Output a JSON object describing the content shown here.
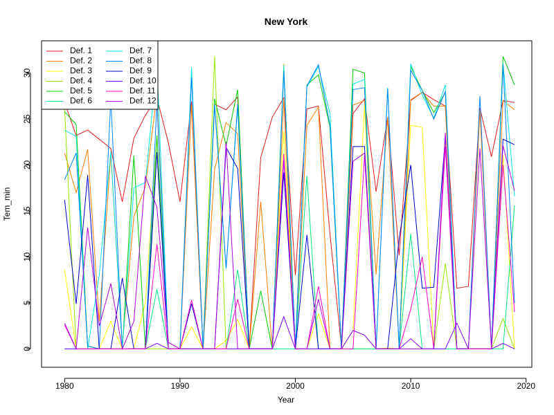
{
  "chart_data": {
    "type": "line",
    "title": "New York",
    "xlabel": "Year",
    "ylabel": "Tem_min",
    "xlim": [
      1978,
      2020.5
    ],
    "ylim": [
      -2,
      33.5
    ],
    "x_ticks": [
      1980,
      1990,
      2000,
      2010,
      2020
    ],
    "y_ticks": [
      0,
      5,
      10,
      15,
      20,
      25,
      30
    ],
    "legend_position": "top-left",
    "legend_columns": 2,
    "grid": false,
    "x": [
      1980,
      1981,
      1982,
      1983,
      1984,
      1985,
      1986,
      1987,
      1988,
      1989,
      1990,
      1991,
      1992,
      1993,
      1994,
      1995,
      1996,
      1997,
      1998,
      1999,
      2000,
      2001,
      2002,
      2003,
      2004,
      2005,
      2006,
      2007,
      2008,
      2009,
      2010,
      2011,
      2012,
      2013,
      2014,
      2015,
      2016,
      2017,
      2018,
      2019
    ],
    "series": [
      {
        "name": "Def. 1",
        "color": "#E41A1C",
        "values": [
          26.8,
          23.2,
          23.8,
          22.8,
          21.8,
          16.0,
          22.9,
          25.4,
          27.3,
          22.4,
          16.0,
          26.9,
          0.2,
          26.6,
          26.0,
          27.4,
          0.1,
          20.8,
          25.2,
          27.3,
          8.0,
          26.1,
          26.4,
          12.5,
          0.2,
          25.6,
          27.2,
          17.1,
          25.2,
          10.2,
          27.0,
          27.9,
          27.1,
          26.4,
          6.6,
          6.8,
          26.2,
          20.9,
          27.0,
          26.8
        ]
      },
      {
        "name": "Def. 2",
        "color": "#FF7F00",
        "values": [
          21.3,
          17.0,
          21.7,
          3.0,
          21.2,
          0.3,
          14.4,
          17.6,
          27.6,
          0.0,
          0.0,
          26.5,
          0.0,
          19.5,
          24.6,
          23.4,
          0.0,
          16.0,
          0.0,
          27.2,
          0.0,
          24.3,
          26.3,
          0.0,
          0.0,
          26.5,
          27.0,
          8.1,
          25.2,
          0.0,
          27.1,
          27.9,
          26.4,
          26.4,
          0.0,
          0.0,
          25.9,
          0.0,
          27.0,
          26.0
        ]
      },
      {
        "name": "Def. 3",
        "color": "#FFFF00",
        "values": [
          8.6,
          0.0,
          0.0,
          0.0,
          3.0,
          0.0,
          0.0,
          5.0,
          23.2,
          0.0,
          0.0,
          2.4,
          0.0,
          0.0,
          0.9,
          3.2,
          0.0,
          0.0,
          0.0,
          23.7,
          0.0,
          0.0,
          3.8,
          0.0,
          0.0,
          2.0,
          26.5,
          0.0,
          0.1,
          0.0,
          24.3,
          24.1,
          0.0,
          22.3,
          0.0,
          0.0,
          0.0,
          0.0,
          21.1,
          0.0
        ]
      },
      {
        "name": "Def. 4",
        "color": "#99E600",
        "values": [
          26.1,
          0.0,
          0.0,
          0.0,
          0.0,
          0.0,
          0.0,
          0.0,
          0.0,
          0.0,
          0.0,
          0.0,
          0.0,
          31.8,
          0.0,
          0.0,
          0.0,
          0.0,
          0.0,
          31.0,
          0.0,
          0.0,
          0.0,
          0.0,
          0.0,
          0.0,
          0.0,
          0.0,
          0.0,
          0.0,
          0.0,
          0.0,
          0.0,
          9.3,
          0.0,
          0.0,
          0.0,
          0.0,
          3.3,
          0.0
        ]
      },
      {
        "name": "Def. 5",
        "color": "#00CC00",
        "values": [
          25.8,
          24.4,
          0.3,
          0.0,
          0.0,
          0.0,
          21.0,
          0.0,
          23.2,
          0.0,
          0.0,
          0.0,
          0.0,
          27.2,
          22.1,
          28.2,
          0.0,
          6.3,
          0.0,
          30.5,
          0.0,
          28.7,
          29.8,
          24.1,
          0.0,
          30.4,
          30.0,
          0.0,
          0.0,
          0.0,
          30.7,
          28.1,
          25.7,
          27.9,
          0.0,
          0.0,
          0.0,
          0.0,
          31.8,
          28.7
        ]
      },
      {
        "name": "Def. 6",
        "color": "#00E680",
        "values": [
          0.0,
          0.0,
          0.0,
          0.0,
          0.0,
          0.0,
          0.0,
          0.0,
          6.5,
          0.0,
          0.0,
          0.0,
          0.0,
          0.0,
          0.0,
          8.6,
          0.0,
          0.0,
          0.0,
          0.0,
          0.0,
          18.8,
          0.0,
          0.0,
          0.0,
          0.0,
          0.0,
          0.0,
          0.0,
          0.0,
          12.5,
          0.0,
          0.0,
          0.0,
          0.0,
          0.0,
          0.0,
          0.0,
          0.0,
          15.6
        ]
      },
      {
        "name": "Def. 7",
        "color": "#00E6E6",
        "values": [
          23.8,
          23.1,
          0.0,
          8.0,
          21.5,
          0.0,
          17.5,
          18.1,
          31.1,
          0.0,
          0.0,
          30.6,
          0.0,
          26.6,
          8.7,
          26.3,
          0.0,
          0.0,
          0.0,
          30.8,
          0.0,
          28.5,
          30.7,
          25.6,
          0.0,
          28.8,
          29.3,
          0.0,
          28.4,
          0.0,
          31.0,
          27.6,
          25.1,
          28.7,
          0.0,
          0.0,
          0.0,
          0.0,
          31.1,
          16.6
        ]
      },
      {
        "name": "Def. 8",
        "color": "#0080FF",
        "values": [
          18.4,
          21.3,
          0.3,
          0.0,
          27.2,
          0.0,
          0.0,
          0.0,
          26.8,
          0.0,
          0.0,
          29.5,
          0.0,
          26.5,
          8.8,
          26.6,
          0.0,
          0.0,
          0.0,
          30.2,
          0.0,
          28.6,
          30.9,
          24.3,
          0.0,
          28.2,
          28.4,
          0.0,
          28.3,
          0.0,
          30.3,
          28.1,
          25.0,
          28.0,
          0.0,
          0.0,
          27.5,
          0.0,
          30.9,
          5.0
        ]
      },
      {
        "name": "Def. 9",
        "color": "#0000CC",
        "values": [
          16.2,
          4.9,
          18.9,
          0.0,
          0.0,
          7.7,
          0.0,
          0.0,
          21.4,
          0.0,
          0.0,
          4.9,
          0.0,
          0.0,
          21.9,
          19.6,
          0.0,
          0.0,
          0.0,
          19.2,
          0.0,
          12.4,
          0.0,
          0.0,
          0.0,
          22.0,
          22.0,
          0.0,
          0.0,
          12.0,
          20.0,
          6.6,
          6.7,
          23.1,
          0.0,
          0.0,
          0.0,
          0.0,
          22.8,
          22.2
        ]
      },
      {
        "name": "Def. 10",
        "color": "#7F00FF",
        "values": [
          0.0,
          0.0,
          0.0,
          0.0,
          0.0,
          0.0,
          0.0,
          0.0,
          0.6,
          0.0,
          0.0,
          0.0,
          0.0,
          0.0,
          0.0,
          0.0,
          0.0,
          0.0,
          0.0,
          3.5,
          0.0,
          0.0,
          0.0,
          0.0,
          0.0,
          2.0,
          1.5,
          0.0,
          0.0,
          0.0,
          1.1,
          0.0,
          0.0,
          0.0,
          2.8,
          0.0,
          0.0,
          0.0,
          0.6,
          0.0
        ]
      },
      {
        "name": "Def. 11",
        "color": "#FF00CC",
        "values": [
          2.6,
          0.0,
          0.0,
          0.0,
          0.0,
          0.0,
          0.0,
          0.0,
          11.4,
          0.0,
          0.0,
          5.3,
          0.0,
          0.0,
          0.0,
          5.4,
          0.0,
          0.0,
          0.0,
          21.2,
          0.0,
          0.0,
          6.8,
          0.0,
          0.0,
          0.0,
          21.0,
          0.0,
          0.0,
          0.0,
          4.3,
          10.0,
          0.0,
          22.0,
          0.0,
          0.0,
          0.0,
          0.0,
          20.0,
          4.0
        ]
      },
      {
        "name": "Def. 12",
        "color": "#B000E0",
        "values": [
          2.8,
          0.0,
          13.2,
          2.5,
          7.1,
          0.0,
          3.0,
          18.8,
          15.4,
          0.7,
          0.0,
          0.0,
          0.0,
          0.0,
          22.5,
          0.0,
          0.0,
          0.0,
          0.0,
          20.5,
          0.0,
          0.0,
          5.4,
          0.0,
          0.0,
          20.4,
          21.3,
          0.0,
          0.0,
          0.0,
          0.0,
          0.0,
          0.0,
          23.5,
          0.0,
          0.0,
          21.8,
          0.0,
          22.1,
          17.2
        ]
      }
    ]
  }
}
